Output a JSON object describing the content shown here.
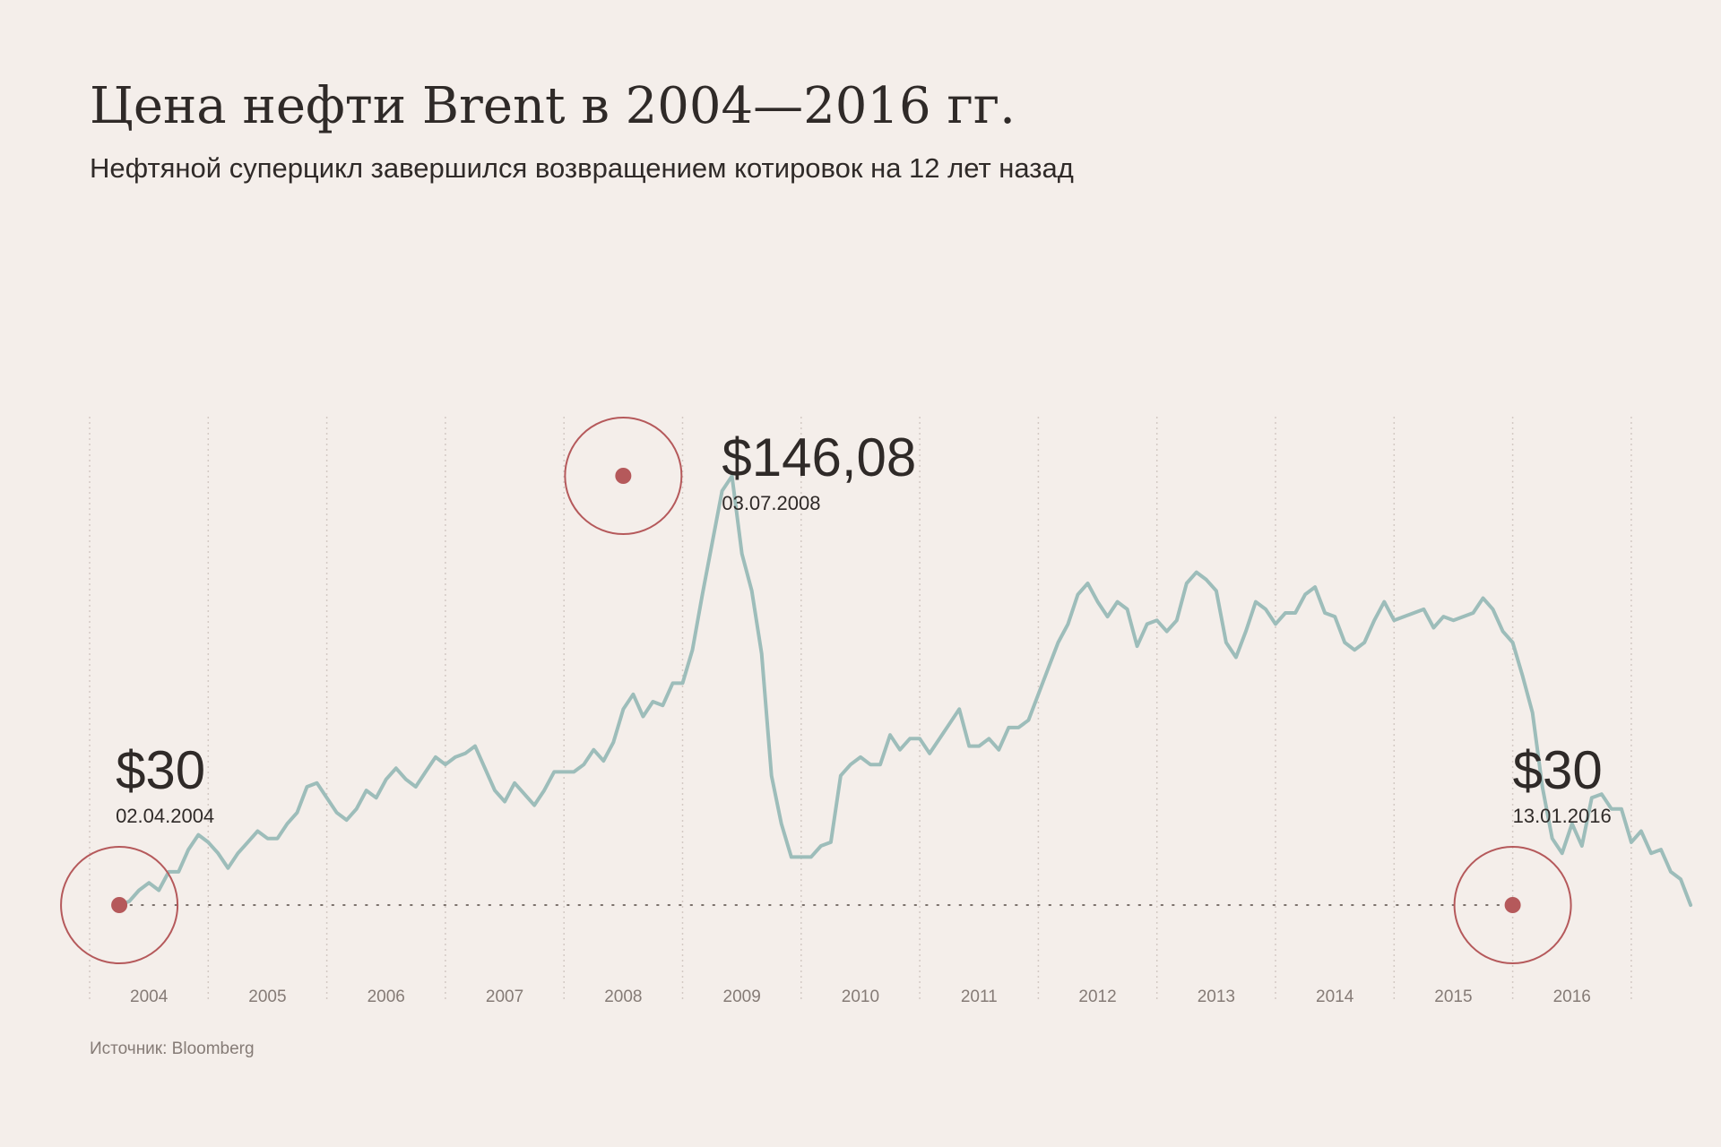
{
  "title": "Цена нефти Brent в 2004—2016 гг.",
  "subtitle": "Нефтяной суперцикл завершился возвращением котировок на 12 лет назад",
  "source": "Источник: Bloomberg",
  "colors": {
    "background": "#f4eeea",
    "line": "#9dbdba",
    "marker": "#b5595b",
    "gridline": "#d3c9c4",
    "text": "#2f2a28",
    "muted": "#857b76"
  },
  "chart_data": {
    "type": "line",
    "title": "Цена нефти Brent в 2004—2016 гг.",
    "xlabel": "",
    "ylabel": "",
    "x_tick_labels": [
      "2004",
      "2005",
      "2006",
      "2007",
      "2008",
      "2009",
      "2010",
      "2011",
      "2012",
      "2013",
      "2014",
      "2015",
      "2016"
    ],
    "xlim": [
      2004.0,
      2017.0
    ],
    "ylim": [
      0,
      160
    ],
    "grid": "vertical dotted lines at year boundaries",
    "legend": "none",
    "baseline_value": 30,
    "series": [
      {
        "x_start": 2004.25,
        "x_step_months": 1,
        "values": [
          30,
          31,
          34,
          36,
          34,
          39,
          39,
          45,
          49,
          47,
          44,
          40,
          44,
          47,
          50,
          48,
          48,
          52,
          55,
          62,
          63,
          59,
          55,
          53,
          56,
          61,
          59,
          64,
          67,
          64,
          62,
          66,
          70,
          68,
          70,
          71,
          73,
          67,
          61,
          58,
          63,
          60,
          57,
          61,
          66,
          66,
          66,
          68,
          72,
          69,
          74,
          83,
          87,
          81,
          85,
          84,
          90,
          90,
          99,
          114,
          128,
          142,
          146,
          125,
          115,
          98,
          65,
          52,
          43,
          43,
          43,
          46,
          47,
          65,
          68,
          70,
          68,
          68,
          76,
          72,
          75,
          75,
          71,
          75,
          79,
          83,
          73,
          73,
          75,
          72,
          78,
          78,
          80,
          87,
          94,
          101,
          106,
          114,
          117,
          112,
          108,
          112,
          110,
          100,
          106,
          107,
          104,
          107,
          117,
          120,
          118,
          115,
          101,
          97,
          104,
          112,
          110,
          106,
          109,
          109,
          114,
          116,
          109,
          108,
          101,
          99,
          101,
          107,
          112,
          107,
          108,
          109,
          110,
          105,
          108,
          107,
          108,
          109,
          113,
          110,
          104,
          101,
          92,
          82,
          62,
          48,
          44,
          52,
          46,
          59,
          60,
          56,
          56,
          47,
          50,
          44,
          45,
          39,
          37,
          30
        ]
      }
    ],
    "annotations": [
      {
        "value_label": "$30",
        "date": "02.04.2004",
        "x": 2004.25,
        "y": 30
      },
      {
        "value_label": "$146,08",
        "date": "03.07.2008",
        "x": 2008.5,
        "y": 146.08
      },
      {
        "value_label": "$30",
        "date": "13.01.2016",
        "x": 2016.0,
        "y": 30
      }
    ]
  }
}
